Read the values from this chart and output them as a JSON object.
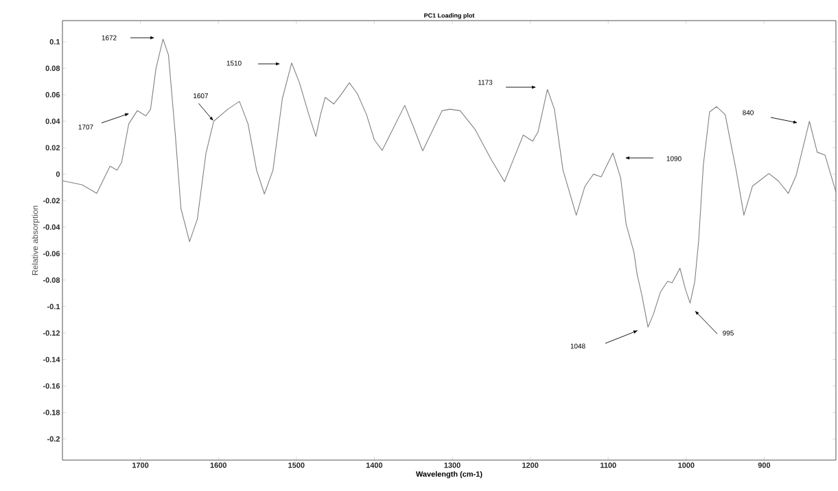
{
  "chart_data": {
    "type": "line",
    "title": "PC1 Loading plot",
    "xlabel": "Wavelength (cm-1)",
    "ylabel": "Relative absorption",
    "xlim": [
      1800,
      808
    ],
    "ylim": [
      -0.216,
      0.116
    ],
    "xticks": [
      1700,
      1600,
      1500,
      1400,
      1300,
      1200,
      1100,
      1000,
      900
    ],
    "yticks": [
      -0.2,
      -0.18,
      -0.16,
      -0.14,
      -0.12,
      -0.1,
      -0.08,
      -0.06,
      -0.04,
      -0.02,
      0,
      0.02,
      0.04,
      0.06,
      0.08,
      0.1
    ],
    "grid": false,
    "series": [
      {
        "color": "#808080",
        "x": [
          1800,
          1775,
          1756,
          1739,
          1730,
          1724,
          1715,
          1704,
          1693,
          1687,
          1680,
          1671,
          1664,
          1655,
          1648,
          1637,
          1627,
          1616,
          1606,
          1588,
          1573,
          1562,
          1551,
          1541,
          1530,
          1518,
          1506,
          1496,
          1484,
          1475,
          1469,
          1463,
          1452,
          1444,
          1432,
          1422,
          1410,
          1400,
          1390,
          1378,
          1361,
          1350,
          1338,
          1313,
          1303,
          1290,
          1271,
          1250,
          1233,
          1220,
          1209,
          1197,
          1190,
          1178,
          1169,
          1158,
          1141,
          1130,
          1119,
          1109,
          1094,
          1084,
          1077,
          1067,
          1063,
          1057,
          1049,
          1042,
          1033,
          1024,
          1018,
          1008,
          1001,
          995,
          989,
          984,
          978,
          970,
          961,
          950,
          936,
          926,
          915,
          906,
          894,
          882,
          869,
          859,
          842,
          832,
          822,
          808
        ],
        "values": [
          -0.005,
          -0.008,
          -0.0145,
          0.006,
          0.003,
          0.009,
          0.038,
          0.048,
          0.044,
          0.049,
          0.08,
          0.102,
          0.09,
          0.028,
          -0.026,
          -0.051,
          -0.034,
          0.0155,
          0.04,
          0.049,
          0.055,
          0.038,
          0.003,
          -0.015,
          0.003,
          0.057,
          0.084,
          0.069,
          0.045,
          0.0285,
          0.045,
          0.058,
          0.053,
          0.059,
          0.069,
          0.061,
          0.045,
          0.026,
          0.018,
          0.032,
          0.052,
          0.036,
          0.0176,
          0.048,
          0.049,
          0.048,
          0.034,
          0.011,
          -0.0057,
          0.0135,
          0.0295,
          0.025,
          0.032,
          0.064,
          0.049,
          0.003,
          -0.031,
          -0.0093,
          0,
          -0.002,
          0.016,
          -0.003,
          -0.038,
          -0.059,
          -0.0756,
          -0.091,
          -0.1155,
          -0.1057,
          -0.089,
          -0.081,
          -0.082,
          -0.071,
          -0.087,
          -0.0974,
          -0.081,
          -0.05,
          0.007,
          0.047,
          0.051,
          0.045,
          0.003,
          -0.031,
          -0.009,
          -0.005,
          0.0005,
          -0.005,
          -0.0145,
          -0.001,
          0.04,
          0.0166,
          0.0145,
          -0.0135
        ]
      }
    ],
    "annotations": [
      "1672",
      "1707",
      {
        "text": "1607",
        "x": 1606,
        "y": 0.04
      },
      "1510",
      "1173",
      "1090",
      "840",
      "1048",
      "995"
    ]
  }
}
